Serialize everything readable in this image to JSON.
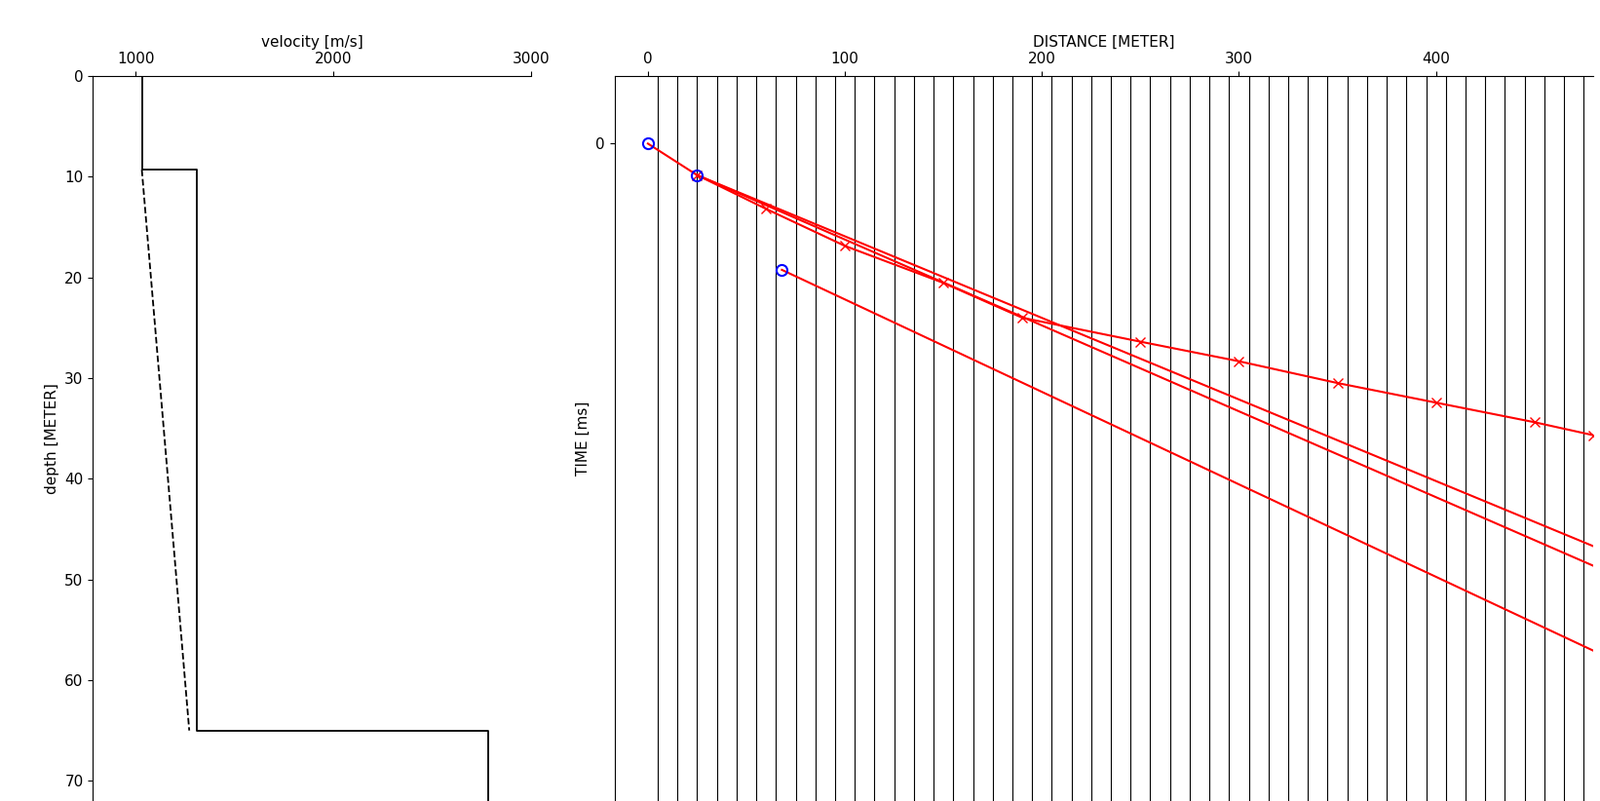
{
  "chart_data": [
    {
      "type": "line",
      "x_label": "velocity [m/s]",
      "y_label": "depth [METER]",
      "xlim": [
        782,
        3000
      ],
      "ylim": [
        72,
        0
      ],
      "xticks": [
        1000,
        2000,
        3000
      ],
      "yticks": [
        0,
        10,
        20,
        30,
        40,
        50,
        60,
        70
      ],
      "series": [
        {
          "x": [
            1030,
            1030,
            1310,
            1310,
            2780,
            2780
          ],
          "y": [
            0,
            9.3,
            9.3,
            65,
            65,
            72
          ],
          "color": "#000000",
          "line_style": "solid"
        },
        {
          "x": [
            1030,
            1270
          ],
          "y": [
            9.3,
            65
          ],
          "color": "#000000",
          "line_style": "dashed"
        }
      ]
    },
    {
      "type": "line",
      "x_label": "DISTANCE [METER]",
      "y_label": "TIME [ms]",
      "xlim": [
        -17,
        480
      ],
      "ylim": [
        302,
        -31
      ],
      "xticks": [
        0,
        100,
        200,
        300,
        400
      ],
      "yticks": [
        0
      ],
      "traces": [
        5,
        15,
        25,
        35,
        45,
        55,
        65,
        75,
        85,
        95,
        105,
        115,
        125,
        135,
        145,
        155,
        165,
        175,
        185,
        195,
        205,
        215,
        225,
        235,
        245,
        255,
        265,
        275,
        285,
        295,
        305,
        315,
        325,
        335,
        345,
        355,
        365,
        375,
        385,
        395,
        405,
        415,
        425,
        435,
        445,
        455,
        465,
        475
      ],
      "series": [
        {
          "x": [
            0,
            25
          ],
          "y": [
            0,
            14.5
          ],
          "color": "#ff0000",
          "line_style": "solid",
          "marker": "none"
        },
        {
          "x": [
            25,
            60,
            100,
            150,
            190,
            250,
            300,
            350,
            400,
            450,
            480
          ],
          "y": [
            14.5,
            30,
            47,
            64,
            80,
            91,
            100,
            110,
            119,
            128,
            134
          ],
          "color": "#ff0000",
          "line_style": "solid",
          "marker": "x"
        },
        {
          "x": [
            25,
            480
          ],
          "y": [
            14.5,
            185
          ],
          "color": "#ff0000",
          "line_style": "solid",
          "marker": "none"
        },
        {
          "x": [
            25,
            480
          ],
          "y": [
            14.5,
            194
          ],
          "color": "#ff0000",
          "line_style": "solid",
          "marker": "none"
        },
        {
          "x": [
            68,
            480
          ],
          "y": [
            58,
            233
          ],
          "color": "#ff0000",
          "line_style": "solid",
          "marker": "none"
        }
      ],
      "picks": {
        "x": [
          0,
          25,
          68
        ],
        "y": [
          0,
          14.5,
          58
        ],
        "color": "#0000ff",
        "marker": "o"
      }
    }
  ]
}
